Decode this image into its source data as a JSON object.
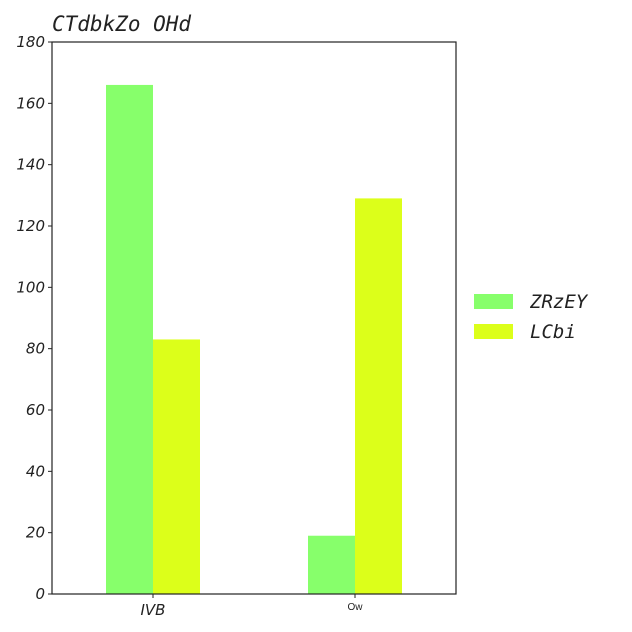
{
  "chart_data": {
    "type": "bar",
    "title": "CTdbkZo  OHd",
    "categories": [
      "IVB",
      "Ow"
    ],
    "series": [
      {
        "name": "ZRzEY",
        "color": "#87ff6b",
        "values": [
          166,
          19
        ]
      },
      {
        "name": "LCbi",
        "color": "#dcff1a",
        "values": [
          83,
          129
        ]
      }
    ],
    "ylim": [
      0,
      180
    ],
    "yticks": [
      0,
      20,
      40,
      60,
      80,
      100,
      120,
      140,
      160,
      180
    ],
    "grid": false,
    "legend_position": "right"
  }
}
